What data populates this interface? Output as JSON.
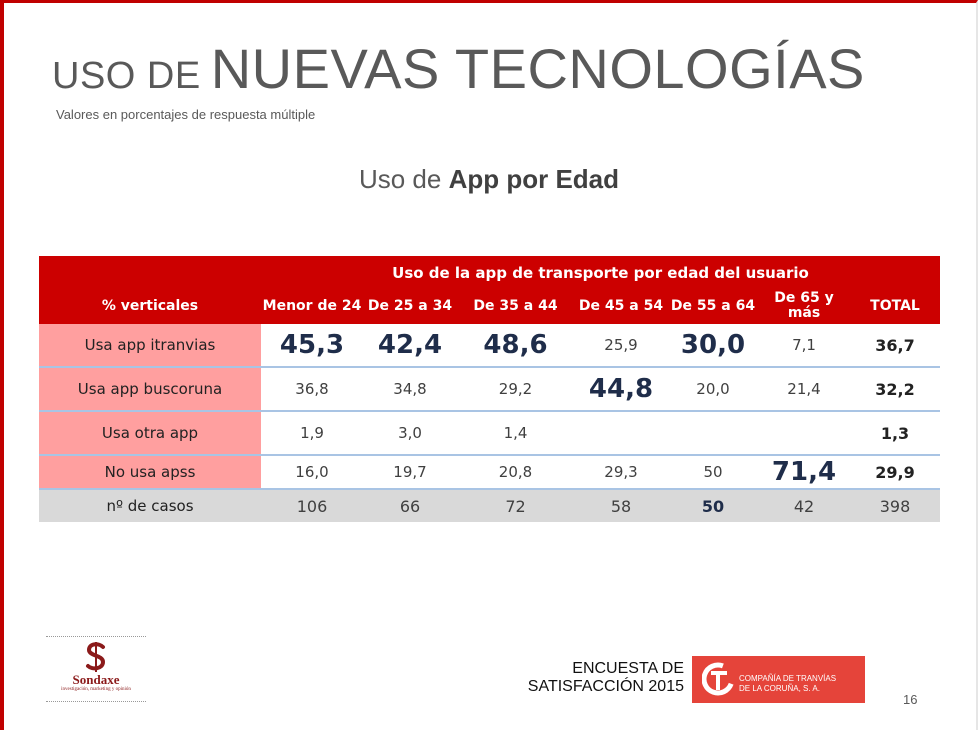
{
  "title": {
    "small": "USO DE",
    "big": "NUEVAS TECNOLOGÍAS"
  },
  "subtitle": "Valores en porcentajes de respuesta múltiple",
  "heading": {
    "normal": "Uso de",
    "bold": "App por Edad"
  },
  "table": {
    "caption": "Uso de la app de transporte por edad del usuario",
    "row_header_label": "% verticales",
    "columns": [
      "Menor de 24",
      "De 25 a 34",
      "De 35 a 44",
      "De 45 a 54",
      "De 55 a 64",
      "De 65 y más",
      "TOTAL"
    ],
    "rows": [
      {
        "label": "Usa app itranvias",
        "values": [
          "45,3",
          "42,4",
          "48,6",
          "25,9",
          "30,0",
          "7,1",
          "36,7"
        ]
      },
      {
        "label": "Usa app buscoruna",
        "values": [
          "36,8",
          "34,8",
          "29,2",
          "44,8",
          "20,0",
          "21,4",
          "32,2"
        ]
      },
      {
        "label": "Usa otra app",
        "values": [
          "1,9",
          "3,0",
          "1,4",
          "",
          "",
          "",
          "1,3"
        ]
      },
      {
        "label": "No usa apss",
        "values": [
          "16,0",
          "19,7",
          "20,8",
          "29,3",
          "50",
          "71,4",
          "29,9"
        ]
      }
    ],
    "cases": {
      "label": "nº de casos",
      "values": [
        "106",
        "66",
        "72",
        "58",
        "50",
        "42",
        "398"
      ]
    }
  },
  "logo_sondaxe": {
    "name": "Sondaxe",
    "tagline": "investigación, marketing y opinión"
  },
  "survey": {
    "line1": "ENCUESTA DE",
    "line2": "SATISFACCIÓN 2015"
  },
  "company": {
    "line1": "COMPAÑÍA DE TRANVÍAS",
    "line2": "DE LA CORUÑA, S. A."
  },
  "page_number": "16",
  "colors": {
    "accent": "#cc0000",
    "label_bg": "#ff9f9f",
    "cases_bg": "#d9d9d9",
    "row_line": "#a9c4e4",
    "company_bg": "#e5443a"
  }
}
